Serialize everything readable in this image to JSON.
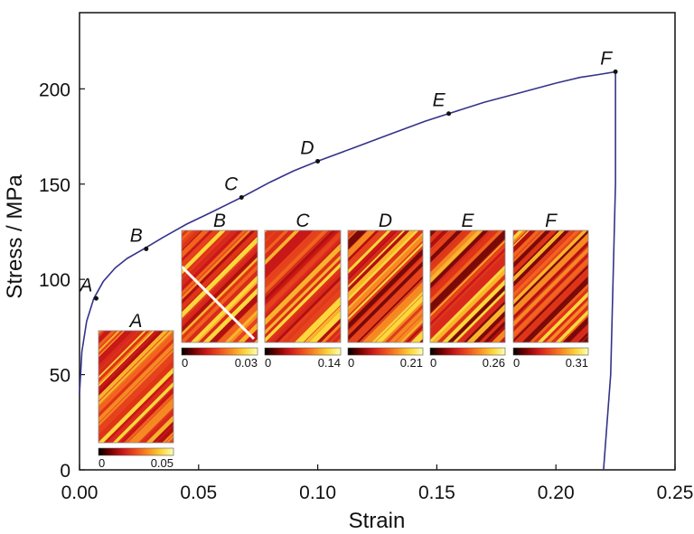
{
  "chart_data": {
    "type": "line",
    "xlabel": "Strain",
    "ylabel": "Stress / MPa",
    "xlim": [
      0,
      0.25
    ],
    "ylim": [
      0,
      240
    ],
    "x_ticks": [
      "0.00",
      "0.05",
      "0.10",
      "0.15",
      "0.20",
      "0.25"
    ],
    "y_ticks": [
      "0",
      "50",
      "100",
      "150",
      "200"
    ],
    "grid": false,
    "line_color": "#33338a",
    "series": [
      {
        "x": [
          0,
          0.001,
          0.003,
          0.006,
          0.01,
          0.015,
          0.02,
          0.027,
          0.035,
          0.045,
          0.055,
          0.068,
          0.08,
          0.09,
          0.1,
          0.115,
          0.13,
          0.145,
          0.155,
          0.17,
          0.185,
          0.2,
          0.21,
          0.218,
          0.225,
          0.225,
          0.223,
          0.22
        ],
        "y": [
          40,
          62,
          78,
          90,
          99,
          106,
          111,
          116,
          122,
          129,
          135,
          143,
          151,
          157,
          162,
          169,
          176,
          183,
          187,
          193,
          198,
          203,
          206,
          207.5,
          209,
          150,
          50,
          0
        ]
      }
    ],
    "points": [
      {
        "label": "A",
        "x": 0.007,
        "y": 90
      },
      {
        "label": "B",
        "x": 0.028,
        "y": 116
      },
      {
        "label": "C",
        "x": 0.068,
        "y": 143
      },
      {
        "label": "D",
        "x": 0.1,
        "y": 162
      },
      {
        "label": "E",
        "x": 0.155,
        "y": 187
      },
      {
        "label": "F",
        "x": 0.225,
        "y": 209
      }
    ],
    "insets": [
      {
        "label": "A",
        "cb_min": "0",
        "cb_max": "0.05"
      },
      {
        "label": "B",
        "cb_min": "0",
        "cb_max": "0.03"
      },
      {
        "label": "C",
        "cb_min": "0",
        "cb_max": "0.14"
      },
      {
        "label": "D",
        "cb_min": "0",
        "cb_max": "0.21"
      },
      {
        "label": "E",
        "cb_min": "0",
        "cb_max": "0.26"
      },
      {
        "label": "F",
        "cb_min": "0",
        "cb_max": "0.31"
      }
    ],
    "colormap": [
      "#000000",
      "#7a0000",
      "#cc1a1a",
      "#ee4e1c",
      "#f98f22",
      "#fcd43a",
      "#ffffb0"
    ]
  }
}
